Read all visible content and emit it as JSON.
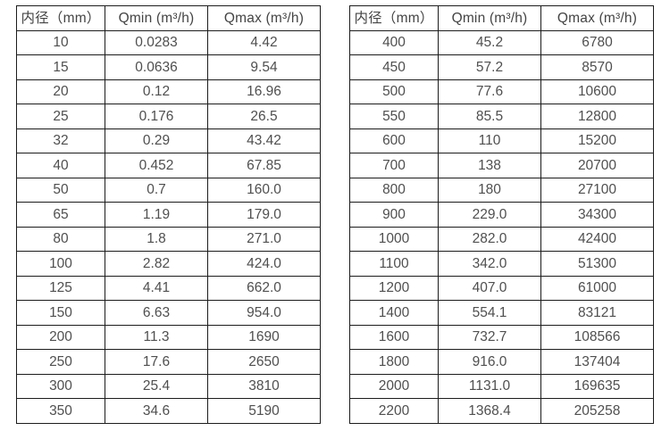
{
  "page": {
    "background_color": "#ffffff",
    "border_color": "#1c1c1c",
    "text_color": "#4f4f4f"
  },
  "tables": [
    {
      "name": "flow-spec-table-small-diameters",
      "headers": [
        "内径（mm）",
        "Qmin (m³/h)",
        "Qmax (m³/h)"
      ],
      "rows": [
        [
          "10",
          "0.0283",
          "4.42"
        ],
        [
          "15",
          "0.0636",
          "9.54"
        ],
        [
          "20",
          "0.12",
          "16.96"
        ],
        [
          "25",
          "0.176",
          "26.5"
        ],
        [
          "32",
          "0.29",
          "43.42"
        ],
        [
          "40",
          "0.452",
          "67.85"
        ],
        [
          "50",
          "0.7",
          "160.0"
        ],
        [
          "65",
          "1.19",
          "179.0"
        ],
        [
          "80",
          "1.8",
          "271.0"
        ],
        [
          "100",
          "2.82",
          "424.0"
        ],
        [
          "125",
          "4.41",
          "662.0"
        ],
        [
          "150",
          "6.63",
          "954.0"
        ],
        [
          "200",
          "11.3",
          "1690"
        ],
        [
          "250",
          "17.6",
          "2650"
        ],
        [
          "300",
          "25.4",
          "3810"
        ],
        [
          "350",
          "34.6",
          "5190"
        ]
      ]
    },
    {
      "name": "flow-spec-table-large-diameters",
      "headers": [
        "内径（mm）",
        "Qmin (m³/h)",
        "Qmax (m³/h)"
      ],
      "rows": [
        [
          "400",
          "45.2",
          "6780"
        ],
        [
          "450",
          "57.2",
          "8570"
        ],
        [
          "500",
          "77.6",
          "10600"
        ],
        [
          "550",
          "85.5",
          "12800"
        ],
        [
          "600",
          "110",
          "15200"
        ],
        [
          "700",
          "138",
          "20700"
        ],
        [
          "800",
          "180",
          "27100"
        ],
        [
          "900",
          "229.0",
          "34300"
        ],
        [
          "1000",
          "282.0",
          "42400"
        ],
        [
          "1100",
          "342.0",
          "51300"
        ],
        [
          "1200",
          "407.0",
          "61000"
        ],
        [
          "1400",
          "554.1",
          "83121"
        ],
        [
          "1600",
          "732.7",
          "108566"
        ],
        [
          "1800",
          "916.0",
          "137404"
        ],
        [
          "2000",
          "1131.0",
          "169635"
        ],
        [
          "2200",
          "1368.4",
          "205258"
        ]
      ]
    }
  ]
}
